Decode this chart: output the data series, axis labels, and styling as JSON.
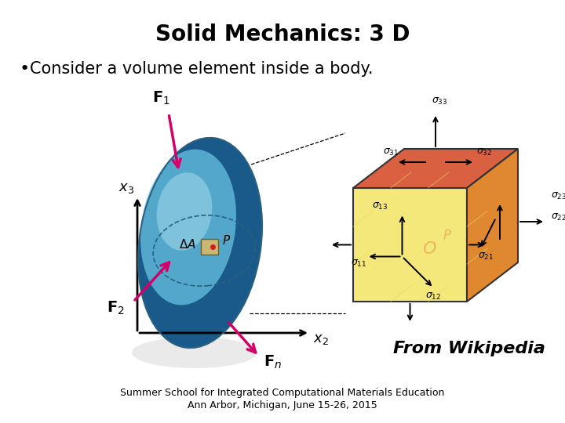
{
  "title": "Solid Mechanics: 3 D",
  "bullet": "Consider a volume element inside a body.",
  "from_wikipedia": "From Wikipedia",
  "footer_line1": "Summer School for Integrated Computational Materials Education",
  "footer_line2": "Ann Arbor, Michigan, June 15-26, 2015",
  "bg_color": "#ffffff",
  "title_fontsize": 20,
  "bullet_fontsize": 15,
  "footer_fontsize": 9,
  "wikipedia_fontsize": 16,
  "ellipse_face": "#5bb8d4",
  "ellipse_dark": "#1a5a7a",
  "cube_front": "#f5e87a",
  "cube_top": "#d96040",
  "cube_right": "#e08830",
  "arrow_color": "#d4006a",
  "axis_color": "#000000"
}
